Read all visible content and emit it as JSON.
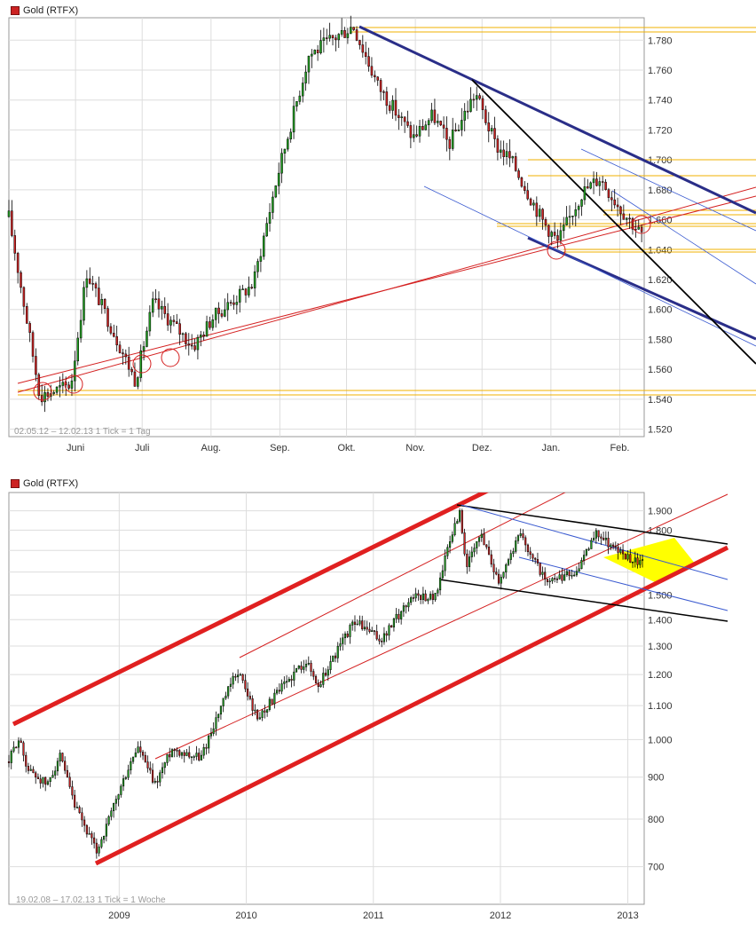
{
  "charts": [
    {
      "title": "Gold (RTFX)",
      "footer": "02.05.12 – 12.02.13   1 Tick = 1 Tag",
      "colors": {
        "up": "#22a022",
        "down": "#cc2222",
        "grid": "#dddddd",
        "frame": "#999999"
      }
    },
    {
      "title": "Gold (RTFX)",
      "footer": "19.02.08 – 17.02.13   1 Tick = 1 Woche",
      "colors": {
        "up": "#22a022",
        "down": "#cc2222",
        "grid": "#dddddd",
        "frame": "#999999",
        "highlight": "#ffff00"
      }
    }
  ],
  "chart_data": [
    {
      "type": "candlestick",
      "title": "Gold (RTFX)",
      "x_range": [
        "2012-05-02",
        "2013-02-12"
      ],
      "ylim": [
        1515,
        1795
      ],
      "yticks": [
        1520,
        1540,
        1560,
        1580,
        1600,
        1620,
        1640,
        1660,
        1680,
        1700,
        1720,
        1740,
        1760,
        1780
      ],
      "ytick_labels": [
        "1.520",
        "1.540",
        "1.560",
        "1.580",
        "1.600",
        "1.620",
        "1.640",
        "1.660",
        "1.680",
        "1.700",
        "1.720",
        "1.740",
        "1.760",
        "1.780"
      ],
      "xtick_labels": [
        "Juni",
        "Juli",
        "Aug.",
        "Sep.",
        "Okt.",
        "Nov.",
        "Dez.",
        "Jan.",
        "Feb."
      ],
      "xtick_dates": [
        "2012-06-01",
        "2012-07-01",
        "2012-08-01",
        "2012-09-01",
        "2012-10-01",
        "2012-11-01",
        "2012-12-01",
        "2013-01-01",
        "2013-02-01"
      ],
      "key_closes": [
        [
          "2012-05-02",
          1662
        ],
        [
          "2012-05-16",
          1542
        ],
        [
          "2012-05-30",
          1550
        ],
        [
          "2012-06-06",
          1625
        ],
        [
          "2012-06-28",
          1552
        ],
        [
          "2012-07-06",
          1605
        ],
        [
          "2012-07-24",
          1575
        ],
        [
          "2012-08-02",
          1595
        ],
        [
          "2012-08-20",
          1617
        ],
        [
          "2012-08-31",
          1690
        ],
        [
          "2012-09-14",
          1770
        ],
        [
          "2012-10-04",
          1790
        ],
        [
          "2012-10-15",
          1750
        ],
        [
          "2012-10-31",
          1715
        ],
        [
          "2012-11-09",
          1730
        ],
        [
          "2012-11-16",
          1710
        ],
        [
          "2012-11-28",
          1745
        ],
        [
          "2012-12-07",
          1710
        ],
        [
          "2012-12-14",
          1700
        ],
        [
          "2012-12-28",
          1660
        ],
        [
          "2013-01-04",
          1645
        ],
        [
          "2013-01-15",
          1678
        ],
        [
          "2013-01-23",
          1688
        ],
        [
          "2013-02-01",
          1668
        ],
        [
          "2013-02-12",
          1648
        ]
      ],
      "grid": true,
      "legend": "none"
    },
    {
      "type": "candlestick",
      "title": "Gold (RTFX)",
      "x_range": [
        "2008-02-19",
        "2013-02-17"
      ],
      "yscale": "log",
      "ylim": [
        630,
        2000
      ],
      "yticks": [
        700,
        800,
        900,
        1000,
        1100,
        1200,
        1300,
        1400,
        1500,
        1600,
        1700,
        1800,
        1900
      ],
      "ytick_labels": [
        "700",
        "800",
        "900",
        "1.000",
        "1.100",
        "1.200",
        "1.300",
        "1.400",
        "1.500",
        "1.600",
        "1.700",
        "1.800",
        "1.900"
      ],
      "xtick_labels": [
        "2009",
        "2010",
        "2011",
        "2012",
        "2013"
      ],
      "xtick_dates": [
        "2009-01-01",
        "2010-01-01",
        "2011-01-01",
        "2012-01-01",
        "2013-01-01"
      ],
      "key_closes": [
        [
          "2008-02-19",
          940
        ],
        [
          "2008-03-17",
          1005
        ],
        [
          "2008-04-14",
          920
        ],
        [
          "2008-06-09",
          880
        ],
        [
          "2008-07-14",
          955
        ],
        [
          "2008-08-25",
          830
        ],
        [
          "2008-10-27",
          730
        ],
        [
          "2008-11-24",
          780
        ],
        [
          "2009-02-23",
          980
        ],
        [
          "2009-04-13",
          880
        ],
        [
          "2009-06-01",
          975
        ],
        [
          "2009-08-24",
          950
        ],
        [
          "2009-12-07",
          1215
        ],
        [
          "2010-02-01",
          1060
        ],
        [
          "2010-06-21",
          1250
        ],
        [
          "2010-07-26",
          1160
        ],
        [
          "2010-11-08",
          1395
        ],
        [
          "2011-01-24",
          1320
        ],
        [
          "2011-04-25",
          1500
        ],
        [
          "2011-06-27",
          1490
        ],
        [
          "2011-09-05",
          1900
        ],
        [
          "2011-09-26",
          1620
        ],
        [
          "2011-11-07",
          1780
        ],
        [
          "2011-12-26",
          1560
        ],
        [
          "2012-02-27",
          1780
        ],
        [
          "2012-05-14",
          1545
        ],
        [
          "2012-08-13",
          1610
        ],
        [
          "2012-10-01",
          1790
        ],
        [
          "2012-12-17",
          1680
        ],
        [
          "2013-02-17",
          1635
        ]
      ],
      "grid": true,
      "legend": "none"
    }
  ]
}
